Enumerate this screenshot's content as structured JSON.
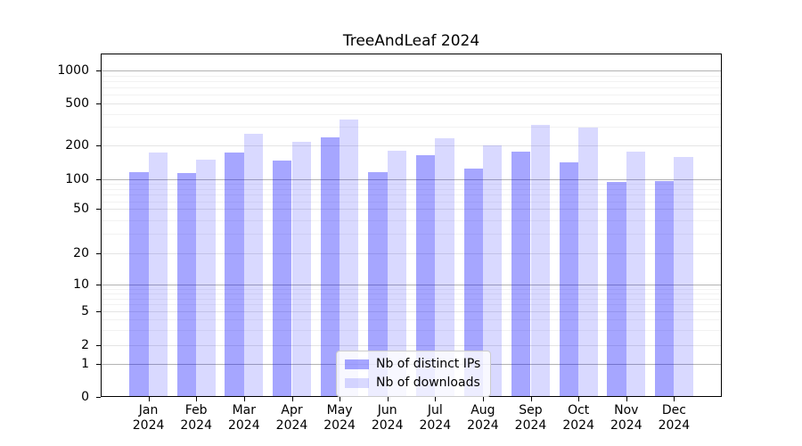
{
  "figure": {
    "title": "TreeAndLeaf 2024"
  },
  "chart_data": {
    "type": "bar",
    "title": "TreeAndLeaf 2024",
    "categories": [
      "Jan",
      "Feb",
      "Mar",
      "Apr",
      "May",
      "Jun",
      "Jul",
      "Aug",
      "Sep",
      "Oct",
      "Nov",
      "Dec"
    ],
    "year": "2024",
    "series": [
      {
        "name": "Nb of distinct IPs",
        "color": "#a6a6ff",
        "css_color": "rgba(0,0,255,0.35)",
        "values": [
          116,
          114,
          173,
          146,
          240,
          116,
          163,
          124,
          176,
          142,
          93,
          96
        ]
      },
      {
        "name": "Nb of downloads",
        "color": "#d9d9ff",
        "css_color": "rgba(0,0,255,0.15)",
        "values": [
          173,
          150,
          260,
          217,
          350,
          181,
          236,
          200,
          315,
          296,
          178,
          158
        ]
      }
    ],
    "yscale": "symlog",
    "ylim": [
      0,
      1430
    ],
    "y_ticks": [
      0,
      1,
      2,
      5,
      10,
      20,
      50,
      100,
      200,
      500,
      1000
    ],
    "y_minor_gridlines": [
      3,
      4,
      6,
      7,
      8,
      9,
      30,
      40,
      60,
      70,
      80,
      90,
      300,
      400,
      600,
      700,
      800,
      900
    ],
    "grid": true,
    "legend_position": "lower center"
  },
  "colors": {
    "background": "#ffffff",
    "spine": "#000000",
    "text": "#000000",
    "grid_major": "#b3b3b3",
    "grid_mid": "#e4e4e4",
    "grid_minor": "#f2f2f2",
    "legend_border": "#cccccc",
    "legend_background": "rgba(255,255,255,0.8)"
  }
}
